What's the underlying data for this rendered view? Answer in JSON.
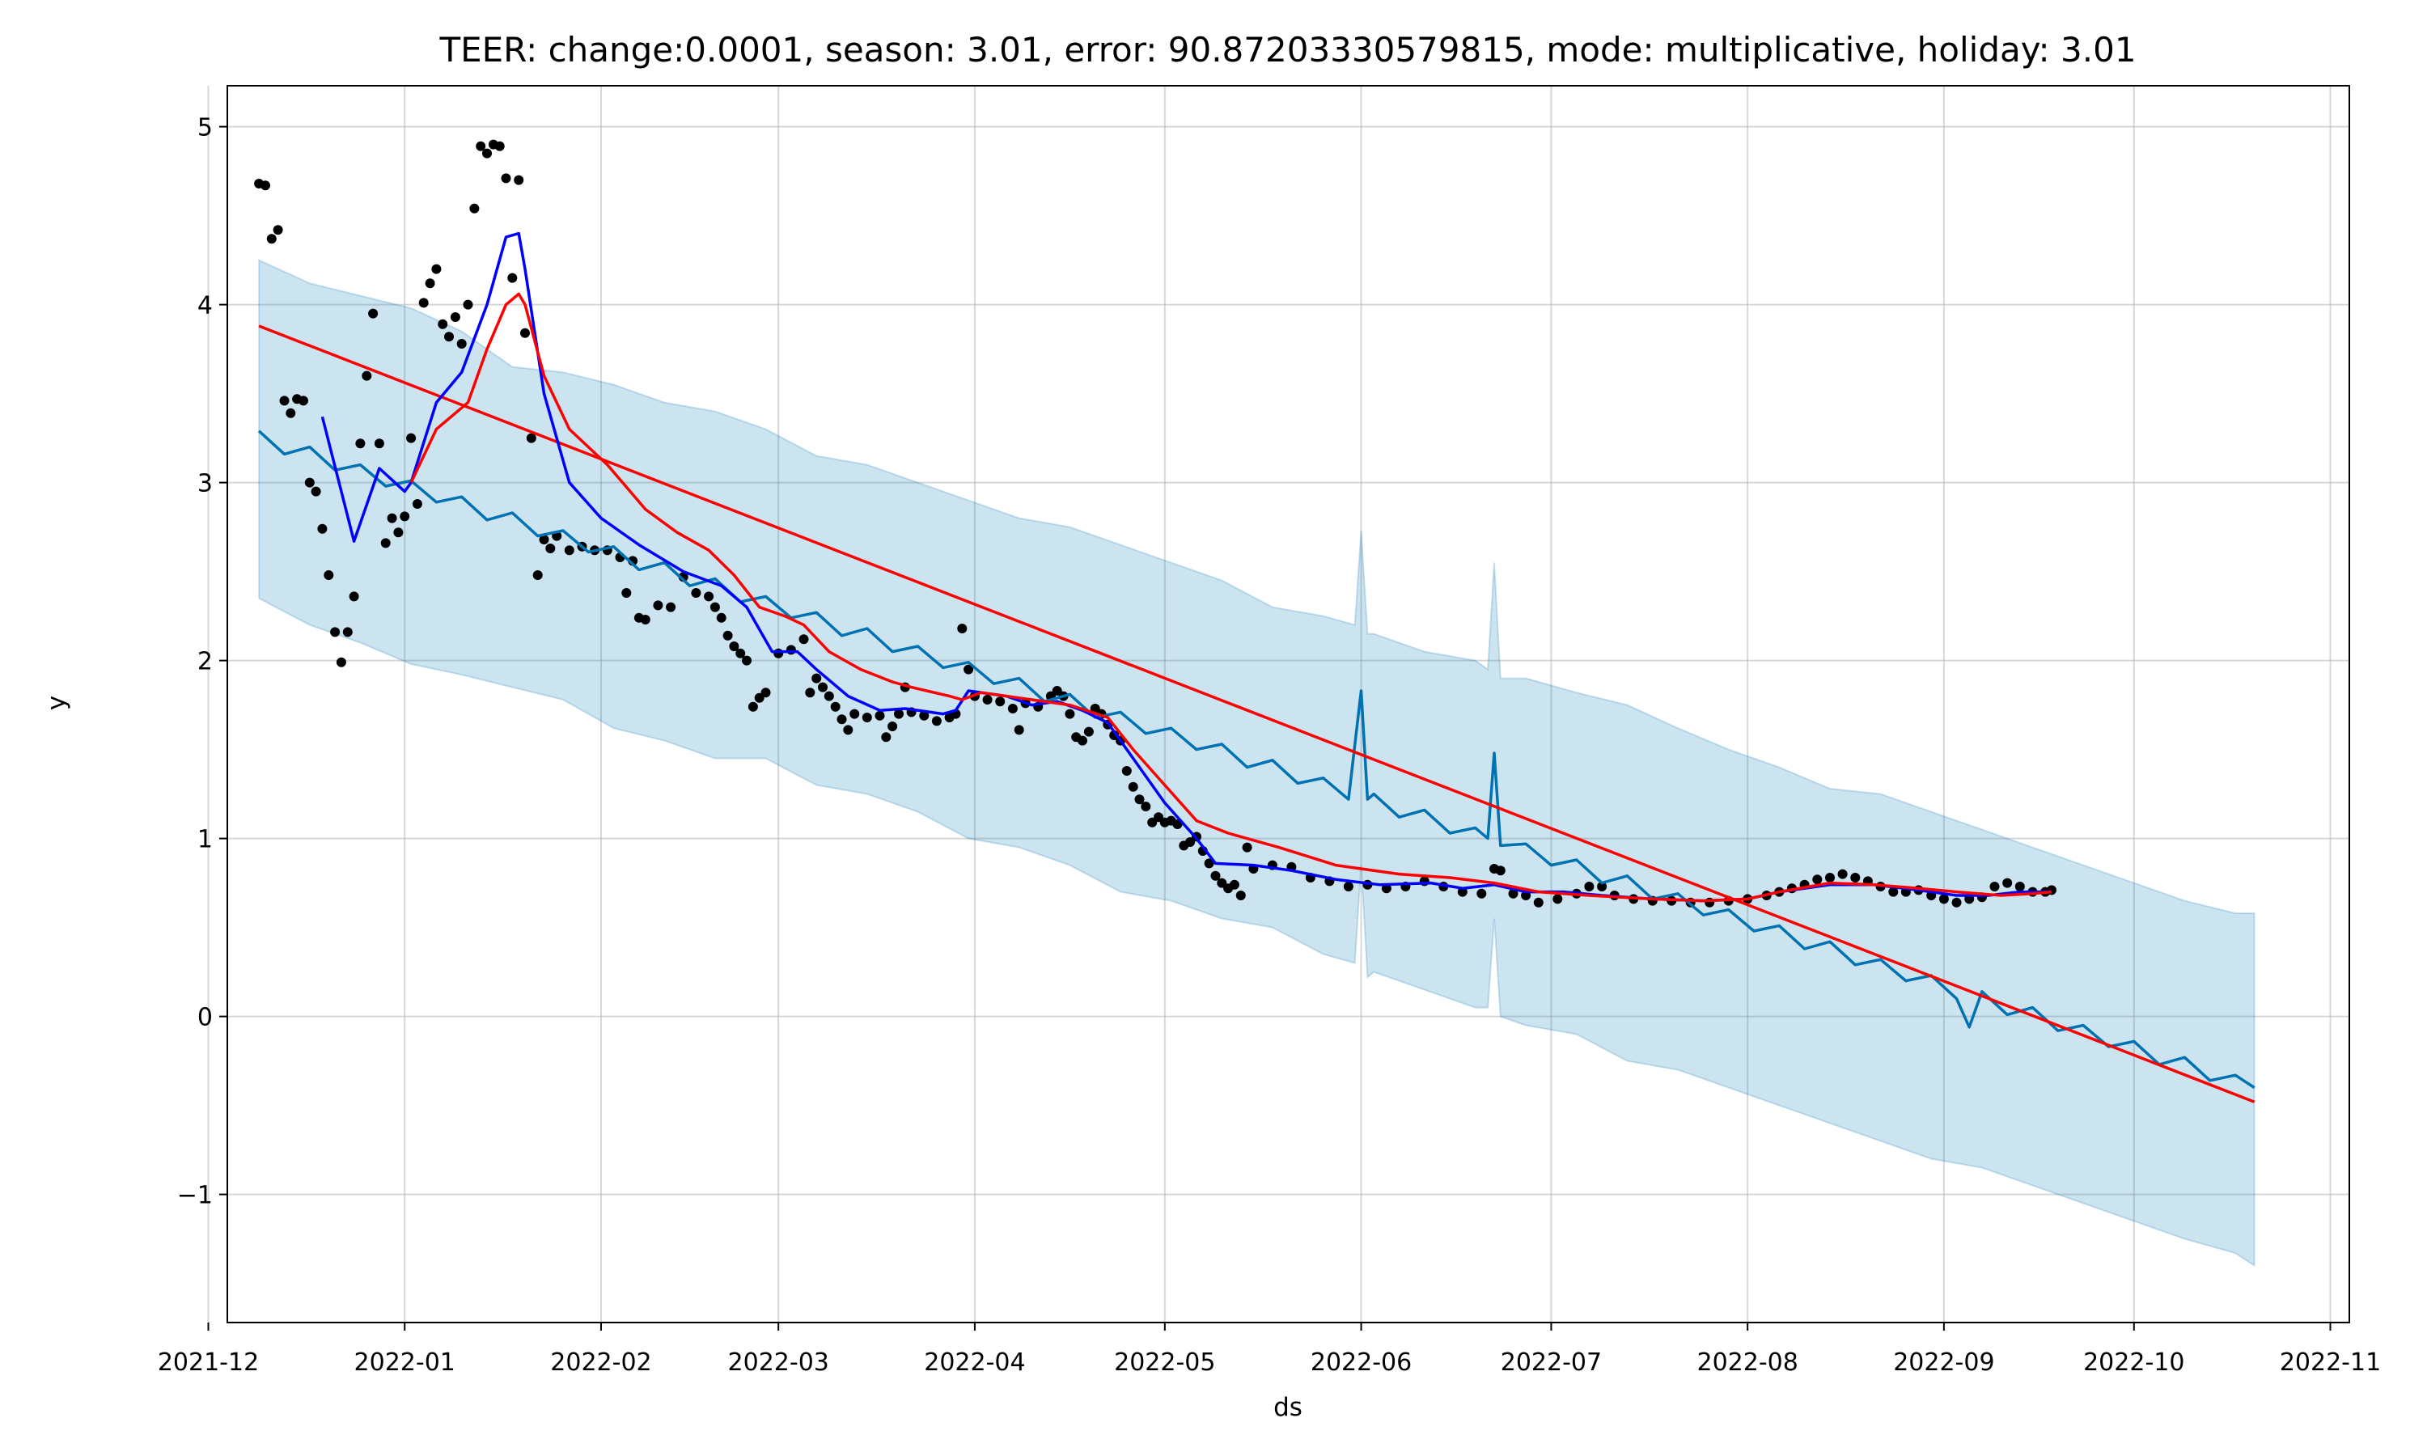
{
  "chart_data": {
    "type": "line",
    "title": "TEER: change:0.0001, season: 3.01, error: 90.87203330579815, mode: multiplicative, holiday: 3.01",
    "xlabel": "ds",
    "ylabel": "y",
    "grid": true,
    "xlim": [
      18965,
      19300
    ],
    "ylim": [
      -1.72,
      5.23
    ],
    "xticks": [
      {
        "value": 18962,
        "label": "2021-12"
      },
      {
        "value": 18993,
        "label": "2022-01"
      },
      {
        "value": 19024,
        "label": "2022-02"
      },
      {
        "value": 19052,
        "label": "2022-03"
      },
      {
        "value": 19083,
        "label": "2022-04"
      },
      {
        "value": 19113,
        "label": "2022-05"
      },
      {
        "value": 19144,
        "label": "2022-06"
      },
      {
        "value": 19174,
        "label": "2022-07"
      },
      {
        "value": 19205,
        "label": "2022-08"
      },
      {
        "value": 19236,
        "label": "2022-09"
      },
      {
        "value": 19266,
        "label": "2022-10"
      },
      {
        "value": 19297,
        "label": "2022-11"
      }
    ],
    "yticks": [
      {
        "value": -1,
        "label": "−1"
      },
      0,
      1,
      2,
      3,
      4,
      5
    ],
    "series": [
      {
        "type": "area",
        "color": "#0072b2",
        "x": [
          18970,
          18978,
          18986,
          18994,
          19002,
          19010,
          19018,
          19026,
          19034,
          19042,
          19050,
          19058,
          19066,
          19074,
          19082,
          19090,
          19098,
          19106,
          19114,
          19122,
          19130,
          19138,
          19143,
          19144,
          19145,
          19146,
          19154,
          19162,
          19164,
          19165,
          19166,
          19170,
          19178,
          19186,
          19194,
          19202,
          19210,
          19218,
          19226,
          19234,
          19242,
          19250,
          19258,
          19266,
          19274,
          19282,
          19285
        ],
        "upper": [
          4.25,
          4.12,
          4.05,
          3.98,
          3.85,
          3.65,
          3.62,
          3.55,
          3.45,
          3.4,
          3.3,
          3.15,
          3.1,
          3.0,
          2.9,
          2.8,
          2.75,
          2.65,
          2.55,
          2.45,
          2.3,
          2.25,
          2.2,
          2.73,
          2.15,
          2.15,
          2.05,
          2.0,
          1.95,
          2.55,
          1.9,
          1.9,
          1.82,
          1.75,
          1.62,
          1.5,
          1.4,
          1.28,
          1.25,
          1.15,
          1.05,
          0.95,
          0.85,
          0.75,
          0.65,
          0.58,
          0.58
        ],
        "lower": [
          2.35,
          2.2,
          2.1,
          1.98,
          1.92,
          1.85,
          1.78,
          1.62,
          1.55,
          1.45,
          1.45,
          1.3,
          1.25,
          1.15,
          1.0,
          0.95,
          0.85,
          0.7,
          0.65,
          0.55,
          0.5,
          0.35,
          0.3,
          0.85,
          0.22,
          0.25,
          0.15,
          0.05,
          0.05,
          0.55,
          0.0,
          -0.05,
          -0.1,
          -0.25,
          -0.3,
          -0.4,
          -0.5,
          -0.6,
          -0.7,
          -0.8,
          -0.85,
          -0.95,
          -1.05,
          -1.15,
          -1.25,
          -1.33,
          -1.4
        ]
      },
      {
        "type": "scatter",
        "color": "#000000",
        "x": [
          18970,
          18971,
          18972,
          18973,
          18974,
          18975,
          18976,
          18977,
          18978,
          18979,
          18980,
          18981,
          18982,
          18983,
          18984,
          18985,
          18986,
          18987,
          18988,
          18989,
          18990,
          18991,
          18992,
          18993,
          18994,
          18995,
          18996,
          18997,
          18998,
          18999,
          19000,
          19001,
          19002,
          19003,
          19004,
          19005,
          19006,
          19007,
          19008,
          19009,
          19010,
          19011,
          19012,
          19013,
          19014,
          19015,
          19016,
          19017,
          19019,
          19021,
          19023,
          19025,
          19027,
          19028,
          19029,
          19030,
          19031,
          19033,
          19035,
          19037,
          19039,
          19041,
          19042,
          19043,
          19044,
          19045,
          19046,
          19047,
          19048,
          19049,
          19050,
          19052,
          19054,
          19056,
          19057,
          19058,
          19059,
          19060,
          19061,
          19062,
          19063,
          19064,
          19066,
          19068,
          19069,
          19070,
          19071,
          19072,
          19073,
          19075,
          19077,
          19079,
          19080,
          19081,
          19082,
          19083,
          19085,
          19087,
          19089,
          19090,
          19091,
          19093,
          19095,
          19096,
          19097,
          19098,
          19099,
          19100,
          19101,
          19102,
          19103,
          19104,
          19105,
          19106,
          19107,
          19108,
          19109,
          19110,
          19111,
          19112,
          19113,
          19114,
          19115,
          19116,
          19117,
          19118,
          19119,
          19120,
          19121,
          19122,
          19123,
          19124,
          19125,
          19126,
          19127,
          19130,
          19133,
          19136,
          19139,
          19142,
          19145,
          19148,
          19151,
          19154,
          19157,
          19160,
          19163,
          19165,
          19166,
          19168,
          19170,
          19172,
          19175,
          19178,
          19180,
          19182,
          19184,
          19187,
          19190,
          19193,
          19196,
          19199,
          19202,
          19205,
          19208,
          19210,
          19212,
          19214,
          19216,
          19218,
          19220,
          19222,
          19224,
          19226,
          19228,
          19230,
          19232,
          19234,
          19236,
          19238,
          19240,
          19242,
          19244,
          19246,
          19248,
          19250,
          19252,
          19253
        ],
        "values": [
          4.68,
          4.67,
          4.37,
          4.42,
          3.46,
          3.39,
          3.47,
          3.46,
          3.0,
          2.95,
          2.74,
          2.48,
          2.16,
          1.99,
          2.16,
          2.36,
          3.22,
          3.6,
          3.95,
          3.22,
          2.66,
          2.8,
          2.72,
          2.81,
          3.25,
          2.88,
          4.01,
          4.12,
          4.2,
          3.89,
          3.82,
          3.93,
          3.78,
          4.0,
          4.54,
          4.89,
          4.85,
          4.9,
          4.89,
          4.71,
          4.15,
          4.7,
          3.84,
          3.25,
          2.48,
          2.68,
          2.63,
          2.7,
          2.62,
          2.64,
          2.62,
          2.62,
          2.58,
          2.38,
          2.56,
          2.24,
          2.23,
          2.31,
          2.3,
          2.47,
          2.38,
          2.36,
          2.3,
          2.24,
          2.14,
          2.08,
          2.04,
          2.0,
          1.74,
          1.79,
          1.82,
          2.04,
          2.06,
          2.12,
          1.82,
          1.9,
          1.85,
          1.8,
          1.74,
          1.67,
          1.61,
          1.7,
          1.68,
          1.69,
          1.57,
          1.63,
          1.7,
          1.85,
          1.71,
          1.69,
          1.66,
          1.68,
          1.7,
          2.18,
          1.95,
          1.8,
          1.78,
          1.77,
          1.73,
          1.61,
          1.76,
          1.74,
          1.8,
          1.83,
          1.8,
          1.7,
          1.57,
          1.55,
          1.6,
          1.73,
          1.7,
          1.64,
          1.58,
          1.55,
          1.38,
          1.29,
          1.22,
          1.18,
          1.09,
          1.12,
          1.09,
          1.1,
          1.08,
          0.96,
          0.98,
          1.01,
          0.93,
          0.86,
          0.79,
          0.75,
          0.72,
          0.74,
          0.68,
          0.95,
          0.83,
          0.85,
          0.84,
          0.78,
          0.76,
          0.73,
          0.74,
          0.72,
          0.73,
          0.76,
          0.73,
          0.7,
          0.69,
          0.83,
          0.82,
          0.69,
          0.68,
          0.64,
          0.66,
          0.69,
          0.73,
          0.73,
          0.68,
          0.66,
          0.65,
          0.65,
          0.64,
          0.64,
          0.65,
          0.66,
          0.68,
          0.7,
          0.72,
          0.74,
          0.77,
          0.78,
          0.8,
          0.78,
          0.76,
          0.73,
          0.7,
          0.7,
          0.71,
          0.68,
          0.66,
          0.64,
          0.66,
          0.67,
          0.73,
          0.75,
          0.73,
          0.7,
          0.7,
          0.71
        ]
      },
      {
        "type": "line",
        "color": "#0072b2",
        "x": [
          18970,
          18974,
          18978,
          18982,
          18986,
          18990,
          18994,
          18998,
          19002,
          19006,
          19010,
          19014,
          19018,
          19022,
          19026,
          19030,
          19034,
          19038,
          19042,
          19046,
          19050,
          19054,
          19058,
          19062,
          19066,
          19070,
          19074,
          19078,
          19082,
          19086,
          19090,
          19094,
          19098,
          19102,
          19106,
          19110,
          19114,
          19118,
          19122,
          19126,
          19130,
          19134,
          19138,
          19142,
          19144,
          19145,
          19146,
          19150,
          19154,
          19158,
          19162,
          19164,
          19165,
          19166,
          19170,
          19174,
          19178,
          19182,
          19186,
          19190,
          19194,
          19198,
          19202,
          19206,
          19210,
          19214,
          19218,
          19222,
          19226,
          19230,
          19234,
          19238,
          19240,
          19242,
          19246,
          19250,
          19254,
          19258,
          19262,
          19266,
          19270,
          19274,
          19278,
          19282,
          19285
        ],
        "values": [
          3.29,
          3.16,
          3.2,
          3.07,
          3.1,
          2.98,
          3.01,
          2.89,
          2.92,
          2.79,
          2.83,
          2.7,
          2.73,
          2.61,
          2.64,
          2.51,
          2.55,
          2.42,
          2.46,
          2.33,
          2.36,
          2.24,
          2.27,
          2.14,
          2.18,
          2.05,
          2.08,
          1.96,
          1.99,
          1.87,
          1.9,
          1.77,
          1.81,
          1.68,
          1.71,
          1.59,
          1.62,
          1.5,
          1.53,
          1.4,
          1.44,
          1.31,
          1.34,
          1.22,
          1.83,
          1.22,
          1.25,
          1.12,
          1.16,
          1.03,
          1.06,
          1.0,
          1.48,
          0.96,
          0.97,
          0.85,
          0.88,
          0.75,
          0.79,
          0.66,
          0.69,
          0.57,
          0.6,
          0.48,
          0.51,
          0.38,
          0.42,
          0.29,
          0.32,
          0.2,
          0.23,
          0.1,
          -0.06,
          0.14,
          0.01,
          0.05,
          -0.08,
          -0.05,
          -0.17,
          -0.14,
          -0.27,
          -0.23,
          -0.36,
          -0.33,
          -0.4
        ]
      },
      {
        "type": "line",
        "color": "#ff0000",
        "x": [
          18970,
          19285
        ],
        "values": [
          3.88,
          -0.48
        ]
      },
      {
        "type": "line",
        "color": "#0000ff",
        "x": [
          18980,
          18985,
          18989,
          18993,
          18994,
          18998,
          19002,
          19006,
          19009,
          19011,
          19012,
          19015,
          19019,
          19024,
          19030,
          19037,
          19043,
          19047,
          19051,
          19055,
          19058,
          19063,
          19068,
          19072,
          19078,
          19080,
          19082,
          19088,
          19092,
          19096,
          19100,
          19104,
          19108,
          19113,
          19118,
          19121,
          19127,
          19133,
          19140,
          19147,
          19155,
          19160,
          19165,
          19170,
          19176,
          19182,
          19190,
          19198,
          19205,
          19210,
          19218,
          19225,
          19232,
          19238,
          19243,
          19248,
          19253
        ],
        "values": [
          3.37,
          2.67,
          3.08,
          2.95,
          3.0,
          3.45,
          3.62,
          4.0,
          4.38,
          4.4,
          4.2,
          3.5,
          3.0,
          2.8,
          2.65,
          2.5,
          2.42,
          2.3,
          2.05,
          2.05,
          1.95,
          1.8,
          1.72,
          1.73,
          1.7,
          1.72,
          1.83,
          1.8,
          1.75,
          1.77,
          1.72,
          1.65,
          1.45,
          1.2,
          1.0,
          0.86,
          0.85,
          0.82,
          0.77,
          0.74,
          0.75,
          0.72,
          0.74,
          0.7,
          0.7,
          0.68,
          0.66,
          0.65,
          0.66,
          0.7,
          0.74,
          0.74,
          0.71,
          0.68,
          0.68,
          0.7,
          0.7
        ]
      },
      {
        "type": "line",
        "color": "#ff0000",
        "x": [
          18994,
          18998,
          19003,
          19006,
          19009,
          19011,
          19012,
          19015,
          19019,
          19025,
          19031,
          19036,
          19041,
          19045,
          19049,
          19053,
          19056,
          19060,
          19065,
          19070,
          19073,
          19079,
          19081,
          19084,
          19092,
          19098,
          19104,
          19108,
          19113,
          19118,
          19123,
          19131,
          19140,
          19150,
          19158,
          19165,
          19172,
          19180,
          19190,
          19198,
          19205,
          19210,
          19218,
          19225,
          19232,
          19238,
          19245,
          19250,
          19253
        ],
        "values": [
          3.0,
          3.3,
          3.45,
          3.75,
          4.0,
          4.06,
          4.0,
          3.6,
          3.3,
          3.1,
          2.85,
          2.72,
          2.62,
          2.48,
          2.3,
          2.25,
          2.2,
          2.05,
          1.95,
          1.88,
          1.85,
          1.8,
          1.78,
          1.82,
          1.78,
          1.75,
          1.68,
          1.5,
          1.3,
          1.1,
          1.03,
          0.95,
          0.85,
          0.8,
          0.78,
          0.75,
          0.7,
          0.68,
          0.66,
          0.65,
          0.66,
          0.7,
          0.75,
          0.74,
          0.72,
          0.7,
          0.68,
          0.69,
          0.7
        ]
      }
    ]
  }
}
